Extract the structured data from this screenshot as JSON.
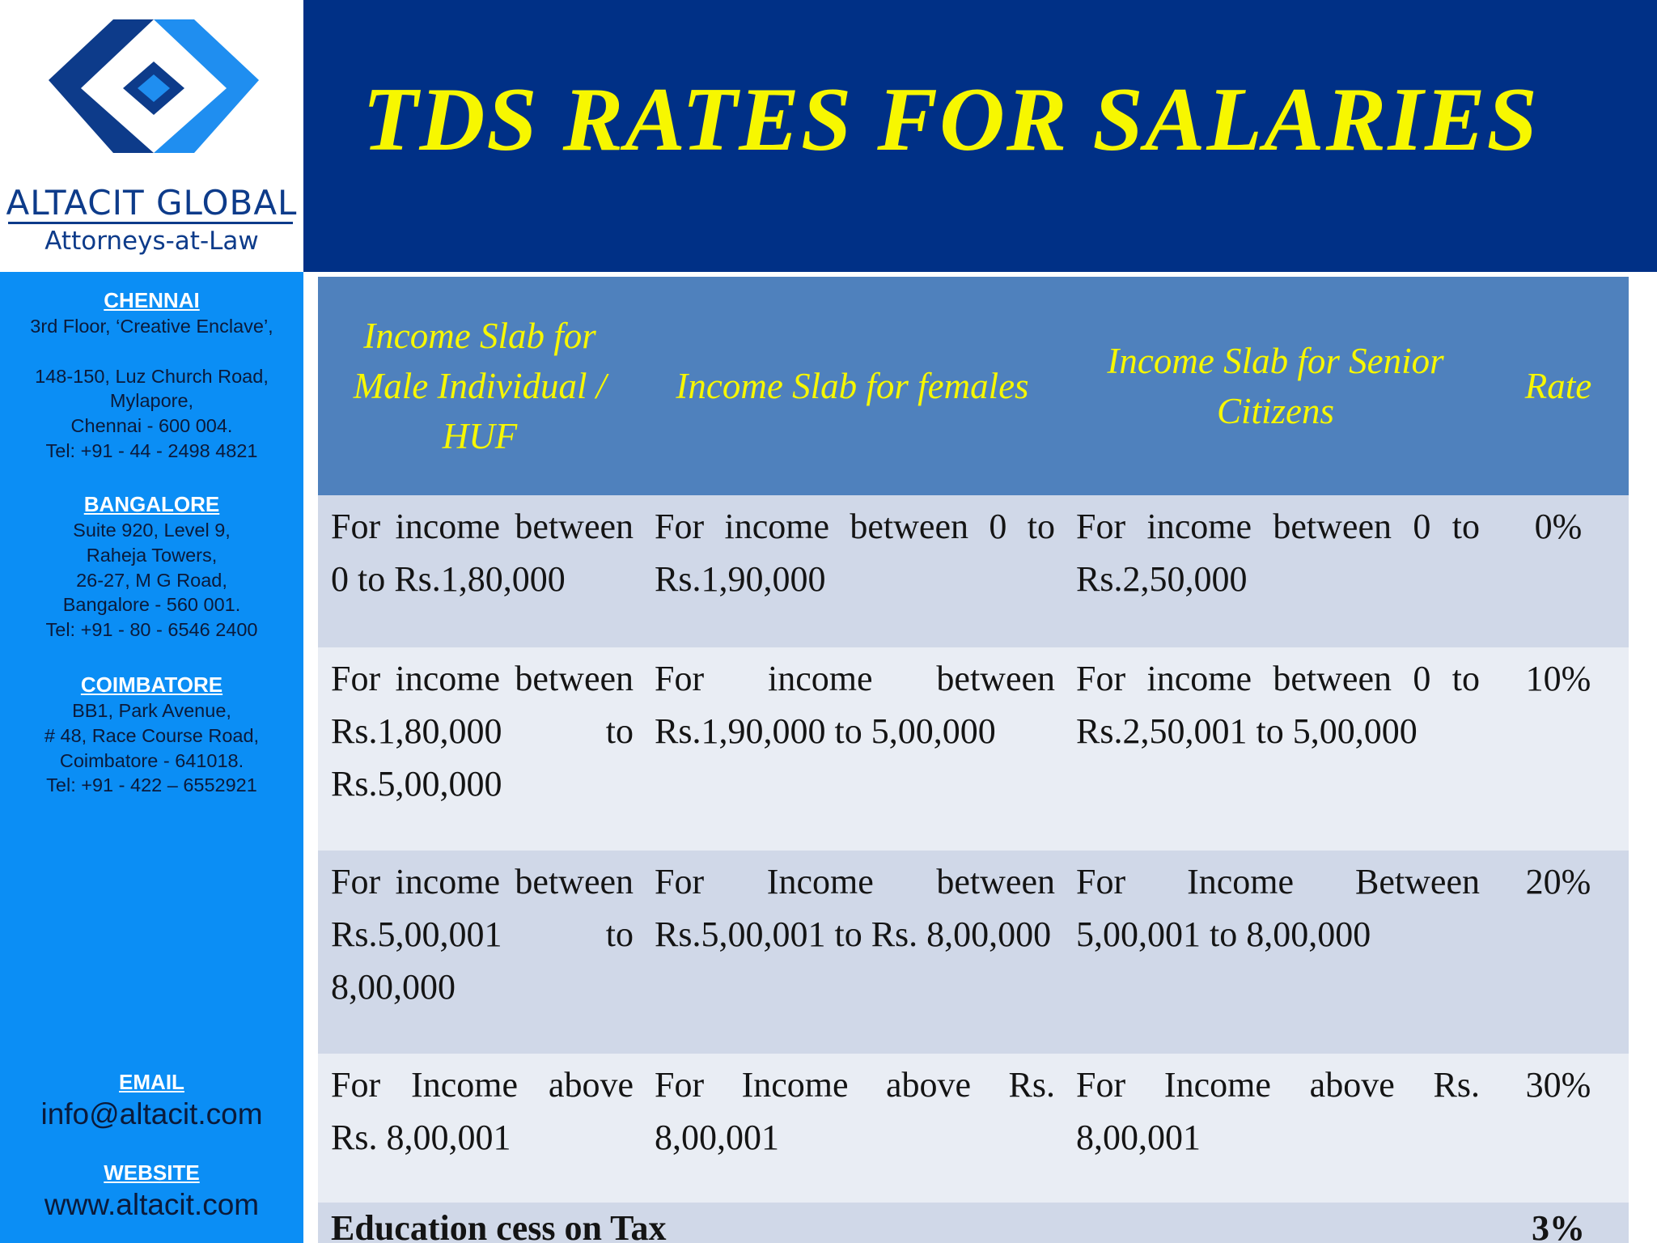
{
  "title": "TDS RATES FOR SALARIES",
  "logo": {
    "name": "ALTACIT GLOBAL",
    "tagline": "Attorneys-at-Law",
    "colors": {
      "dark": "#0d3b8a",
      "light": "#1f8ef0"
    }
  },
  "sidebar": {
    "offices": [
      {
        "name": "CHENNAI",
        "lines": [
          "3rd Floor, ‘Creative Enclave’,",
          "",
          "148-150, Luz Church Road,",
          "Mylapore,",
          "Chennai - 600 004.",
          "Tel: +91 - 44 - 2498 4821"
        ]
      },
      {
        "name": "BANGALORE",
        "lines": [
          "Suite 920, Level 9,",
          "Raheja Towers,",
          "26-27, M G Road,",
          "Bangalore - 560 001.",
          "Tel: +91 - 80 - 6546 2400"
        ]
      },
      {
        "name": "COIMBATORE",
        "lines": [
          "BB1, Park Avenue,",
          "# 48, Race Course Road,",
          "Coimbatore - 641018.",
          "Tel: +91 - 422 – 6552921"
        ]
      }
    ],
    "email_label": "EMAIL",
    "email": "info@altacit.com",
    "website_label": "WEBSITE",
    "website": "www.altacit.com"
  },
  "table": {
    "headers": [
      "Income Slab for Male  Individual / HUF",
      "Income Slab for females",
      "Income Slab for Senior Citizens",
      "Rate"
    ],
    "rows": [
      {
        "male": "For income between 0 to Rs.1,80,000",
        "female": "For income between 0 to Rs.1,90,000",
        "senior": "For income between 0 to Rs.2,50,000",
        "rate": "0%"
      },
      {
        "male": "For income between Rs.1,80,000 to Rs.5,00,000",
        "female": "For income between Rs.1,90,000 to 5,00,000",
        "senior": "For income between 0 to Rs.2,50,001 to 5,00,000",
        "rate": "10%"
      },
      {
        "male": "For income between Rs.5,00,001 to 8,00,000",
        "female": "For Income between Rs.5,00,001 to Rs. 8,00,000",
        "senior": "For Income Between 5,00,001 to 8,00,000",
        "rate": "20%"
      },
      {
        "male": "For Income above Rs. 8,00,001",
        "female": "For Income above Rs. 8,00,001",
        "senior": "For Income above Rs. 8,00,001",
        "rate": "30%"
      }
    ],
    "cess_label": "Education cess on Tax",
    "cess_rate": "3%"
  }
}
